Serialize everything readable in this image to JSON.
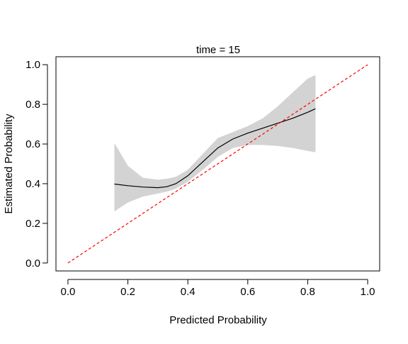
{
  "chart_data": {
    "type": "line",
    "title": "time = 15",
    "xlabel": "Predicted Probability",
    "ylabel": "Estimated Probability",
    "xlim": [
      -0.04,
      1.04
    ],
    "ylim": [
      -0.04,
      1.04
    ],
    "xticks": [
      0.0,
      0.2,
      0.4,
      0.6,
      0.8,
      1.0
    ],
    "xtick_labels": [
      "0.0",
      "0.2",
      "0.4",
      "0.6",
      "0.8",
      "1.0"
    ],
    "yticks": [
      0.0,
      0.2,
      0.4,
      0.6,
      0.8,
      1.0
    ],
    "ytick_labels": [
      "0.0",
      "0.2",
      "0.4",
      "0.6",
      "0.8",
      "1.0"
    ],
    "grid": false,
    "series": [
      {
        "role": "calibration curve",
        "color": "#000000",
        "x": [
          0.155,
          0.2,
          0.25,
          0.3,
          0.33,
          0.36,
          0.4,
          0.45,
          0.5,
          0.55,
          0.6,
          0.65,
          0.7,
          0.75,
          0.8,
          0.826
        ],
        "y": [
          0.398,
          0.39,
          0.383,
          0.38,
          0.385,
          0.4,
          0.44,
          0.51,
          0.58,
          0.625,
          0.655,
          0.68,
          0.705,
          0.73,
          0.76,
          0.778
        ]
      },
      {
        "role": "reference line",
        "color": "#ff0000",
        "linestyle": "dashed",
        "x": [
          0.0,
          1.0
        ],
        "y": [
          0.0,
          1.0
        ]
      }
    ],
    "band": {
      "role": "confidence band",
      "color": "#d3d3d3",
      "x": [
        0.155,
        0.2,
        0.25,
        0.3,
        0.33,
        0.36,
        0.4,
        0.45,
        0.5,
        0.55,
        0.6,
        0.65,
        0.7,
        0.75,
        0.8,
        0.826
      ],
      "upper": [
        0.605,
        0.49,
        0.43,
        0.42,
        0.425,
        0.435,
        0.47,
        0.55,
        0.63,
        0.66,
        0.69,
        0.73,
        0.79,
        0.86,
        0.93,
        0.948
      ],
      "lower": [
        0.26,
        0.305,
        0.335,
        0.35,
        0.36,
        0.375,
        0.41,
        0.47,
        0.535,
        0.58,
        0.595,
        0.595,
        0.59,
        0.58,
        0.565,
        0.558
      ]
    }
  }
}
